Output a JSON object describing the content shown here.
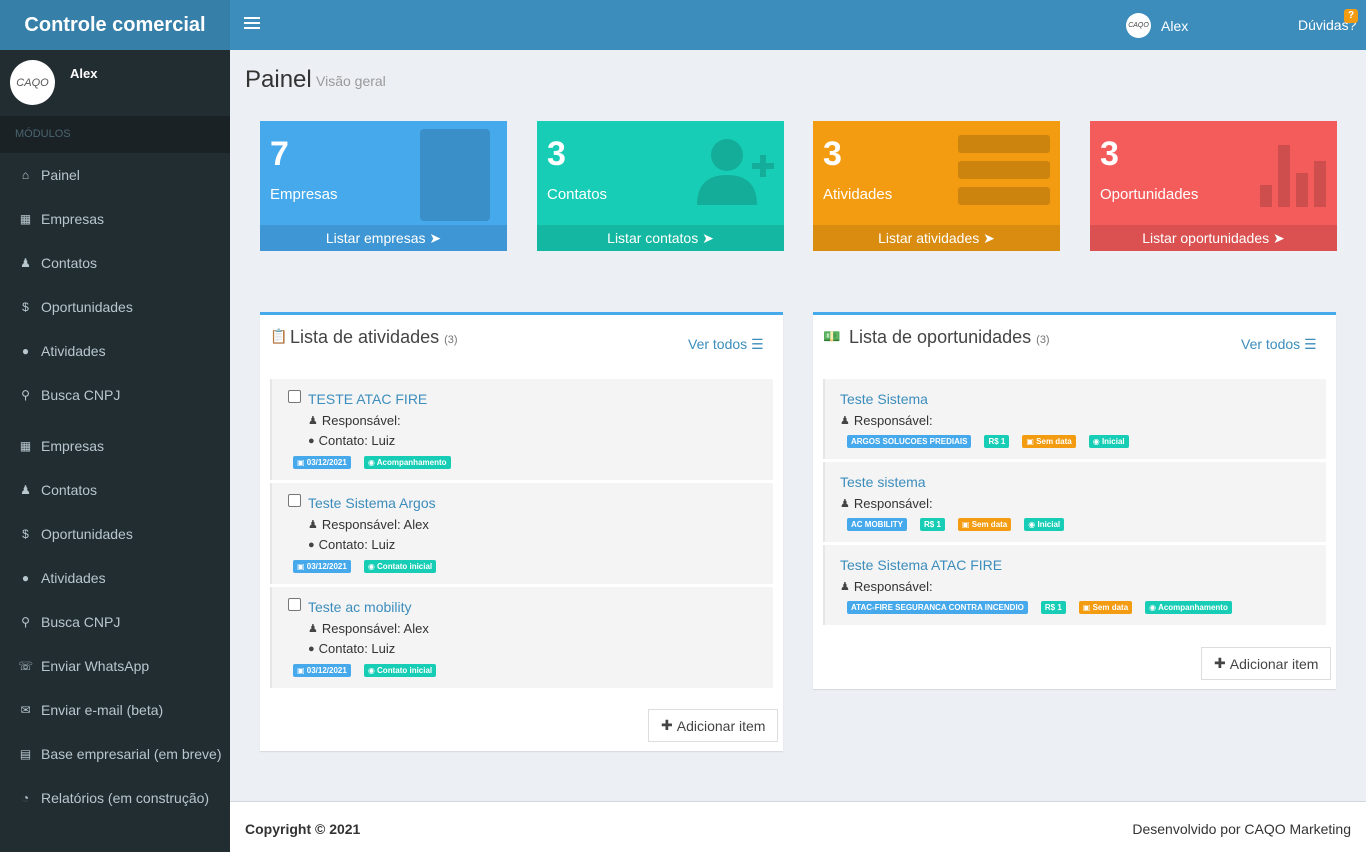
{
  "app": {
    "title": "Controle comercial"
  },
  "topbar": {
    "user_name": "Alex",
    "help_label": "Dúvidas?",
    "help_badge": "?",
    "avatar_text": "CAQO"
  },
  "sidebar": {
    "user_name": "Alex",
    "avatar_text": "CAQO",
    "section_header": "MÓDULOS",
    "items": [
      {
        "label": "Painel",
        "icon": "home-icon"
      },
      {
        "label": "Empresas",
        "icon": "building-icon"
      },
      {
        "label": "Contatos",
        "icon": "users-icon"
      },
      {
        "label": "Oportunidades",
        "icon": "dollar-icon"
      },
      {
        "label": "Atividades",
        "icon": "comments-icon"
      },
      {
        "label": "Busca CNPJ",
        "icon": "search-icon"
      },
      {
        "label": "Empresas",
        "icon": "building-icon"
      },
      {
        "label": "Contatos",
        "icon": "users-icon"
      },
      {
        "label": "Oportunidades",
        "icon": "dollar-icon"
      },
      {
        "label": "Atividades",
        "icon": "comments-icon"
      },
      {
        "label": "Busca CNPJ",
        "icon": "search-icon"
      },
      {
        "label": "Enviar WhatsApp",
        "icon": "whatsapp-icon"
      },
      {
        "label": "Enviar e-mail (beta)",
        "icon": "envelope-icon"
      },
      {
        "label": "Base empresarial (em breve)",
        "icon": "database-icon"
      },
      {
        "label": "Relatórios (em construção)",
        "icon": "dashboard-icon"
      }
    ]
  },
  "page": {
    "title": "Painel",
    "subtitle": "Visão geral"
  },
  "boxes": [
    {
      "count": "7",
      "label": "Empresas",
      "link": "Listar empresas",
      "color": "#46a9ec"
    },
    {
      "count": "3",
      "label": "Contatos",
      "link": "Listar contatos",
      "color": "#17cdb5"
    },
    {
      "count": "3",
      "label": "Atividades",
      "link": "Listar atividades",
      "color": "#f39c12"
    },
    {
      "count": "3",
      "label": "Oportunidades",
      "link": "Listar oportunidades",
      "color": "#f45b5b"
    }
  ],
  "activities": {
    "title": "Lista de atividades",
    "count": "(3)",
    "see_all": "Ver todos",
    "add_label": "Adicionar item",
    "items": [
      {
        "title": "TESTE ATAC FIRE",
        "responsavel": "Responsável:",
        "contato": "Contato: Luiz",
        "date": "03/12/2021",
        "status": "Acompanhamento"
      },
      {
        "title": "Teste Sistema Argos",
        "responsavel": "Responsável: Alex",
        "contato": "Contato: Luiz",
        "date": "03/12/2021",
        "status": "Contato inicial"
      },
      {
        "title": "Teste ac mobility",
        "responsavel": "Responsável: Alex",
        "contato": "Contato: Luiz",
        "date": "03/12/2021",
        "status": "Contato inicial"
      }
    ]
  },
  "opportunities": {
    "title": "Lista de oportunidades",
    "count": "(3)",
    "see_all": "Ver todos",
    "add_label": "Adicionar item",
    "items": [
      {
        "title": "Teste Sistema",
        "responsavel": "Responsável:",
        "company": "ARGOS SOLUCOES PREDIAIS",
        "value": "R$ 1",
        "date": "Sem data",
        "stage": "Inicial"
      },
      {
        "title": "Teste sistema",
        "responsavel": "Responsável:",
        "company": "AC MOBILITY",
        "value": "R$ 1",
        "date": "Sem data",
        "stage": "Inicial"
      },
      {
        "title": "Teste Sistema ATAC FIRE",
        "responsavel": "Responsável:",
        "company": "ATAC-FIRE SEGURANCA CONTRA INCENDIO",
        "value": "R$ 1",
        "date": "Sem data",
        "stage": "Acompanhamento"
      }
    ]
  },
  "footer": {
    "copyright": "Copyright © 2021",
    "developed_by": "Desenvolvido por CAQO Marketing"
  }
}
